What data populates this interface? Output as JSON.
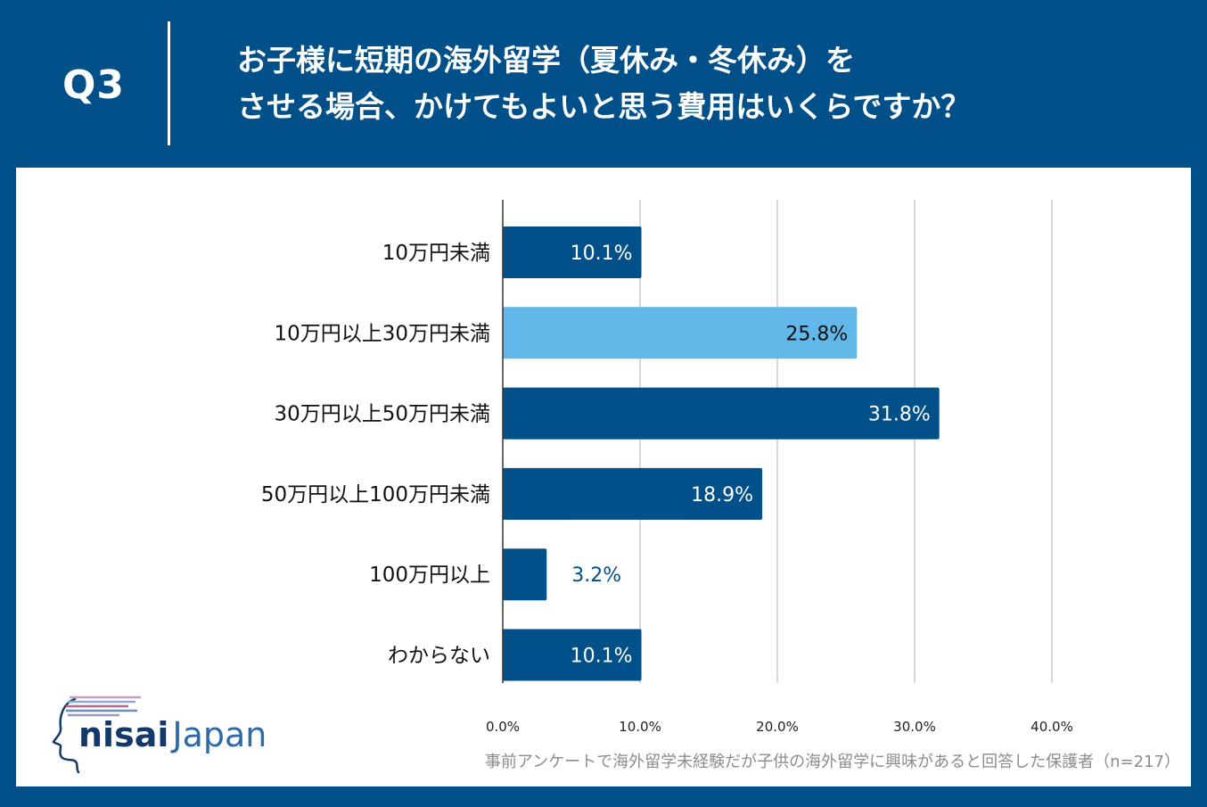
{
  "header": {
    "q_label": "Q3",
    "title_line1": "お子様に短期の海外留学（夏休み・冬休み）を",
    "title_line2": "させる場合、かけてもよいと思う費用はいくらですか？"
  },
  "colors": {
    "background": "#02508a",
    "bar_primary": "#02508a",
    "bar_highlight": "#62b8e8",
    "grid": "#cccccc"
  },
  "chart_data": {
    "type": "bar",
    "orientation": "horizontal",
    "categories": [
      "10万円未満",
      "10万円以上30万円未満",
      "30万円以上50万円未満",
      "50万円以上100万円未満",
      "100万円以上",
      "わからない"
    ],
    "values": [
      10.1,
      25.8,
      31.8,
      18.9,
      3.2,
      10.1
    ],
    "value_labels": [
      "10.1%",
      "25.8%",
      "31.8%",
      "18.9%",
      "3.2%",
      "10.1%"
    ],
    "highlight_index": 1,
    "xlim": [
      0,
      40
    ],
    "x_ticks": [
      0,
      10,
      20,
      30,
      40
    ],
    "x_tick_labels": [
      "0.0%",
      "10.0%",
      "20.0%",
      "30.0%",
      "40.0%"
    ],
    "grid": true,
    "title": "",
    "xlabel": "",
    "ylabel": ""
  },
  "footnote": "事前アンケートで海外留学未経験だが子供の海外留学に興味があると回答した保護者（n=217）",
  "logo": {
    "brand": "nisai",
    "brand_suffix": "Japan",
    "icon": "face-profile-logo-icon"
  }
}
